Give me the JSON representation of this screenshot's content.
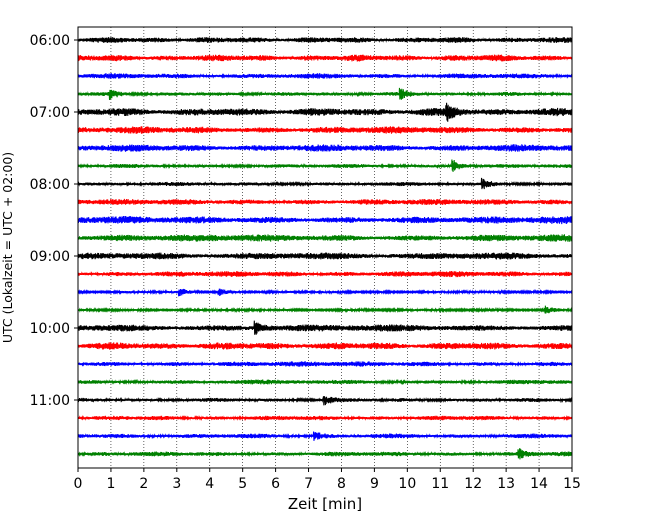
{
  "chart_data": {
    "type": "line",
    "title": "",
    "xlabel": "Zeit  [min]",
    "ylabel": "UTC (Lokalzeit = UTC + 02:00)",
    "xlim": [
      0,
      15
    ],
    "x_ticks": [
      "0",
      "1",
      "2",
      "3",
      "4",
      "5",
      "6",
      "7",
      "8",
      "9",
      "10",
      "11",
      "12",
      "13",
      "14",
      "15"
    ],
    "y_tick_labels": [
      "06:00",
      "07:00",
      "08:00",
      "09:00",
      "10:00",
      "11:00"
    ],
    "y_tick_rows": [
      0,
      4,
      8,
      12,
      16,
      20
    ],
    "grid": "vertical dotted",
    "trace_colors": [
      "#000000",
      "#ff0000",
      "#0000ff",
      "#008000"
    ],
    "traces": [
      {
        "start": "06:00",
        "amplitude": 0.45
      },
      {
        "start": "06:15",
        "amplitude": 0.5
      },
      {
        "start": "06:30",
        "amplitude": 0.4
      },
      {
        "start": "06:45",
        "amplitude": 0.3,
        "events": [
          {
            "t": 1.0,
            "amp": 0.6
          },
          {
            "t": 9.8,
            "amp": 0.6
          }
        ]
      },
      {
        "start": "07:00",
        "amplitude": 0.6,
        "events": [
          {
            "t": 11.2,
            "amp": 1.0
          }
        ]
      },
      {
        "start": "07:15",
        "amplitude": 0.55
      },
      {
        "start": "07:30",
        "amplitude": 0.55
      },
      {
        "start": "07:45",
        "amplitude": 0.3,
        "events": [
          {
            "t": 11.4,
            "amp": 0.8
          }
        ]
      },
      {
        "start": "08:00",
        "amplitude": 0.3,
        "events": [
          {
            "t": 12.3,
            "amp": 0.7
          }
        ]
      },
      {
        "start": "08:15",
        "amplitude": 0.45
      },
      {
        "start": "08:30",
        "amplitude": 0.6
      },
      {
        "start": "08:45",
        "amplitude": 0.55
      },
      {
        "start": "09:00",
        "amplitude": 0.55
      },
      {
        "start": "09:15",
        "amplitude": 0.45
      },
      {
        "start": "09:30",
        "amplitude": 0.2,
        "events": [
          {
            "t": 3.1,
            "amp": 0.5
          },
          {
            "t": 4.3,
            "amp": 0.5
          }
        ]
      },
      {
        "start": "09:45",
        "amplitude": 0.2,
        "events": [
          {
            "t": 14.2,
            "amp": 0.5
          }
        ]
      },
      {
        "start": "10:00",
        "amplitude": 0.55,
        "events": [
          {
            "t": 5.4,
            "amp": 0.8
          }
        ]
      },
      {
        "start": "10:15",
        "amplitude": 0.55
      },
      {
        "start": "10:30",
        "amplitude": 0.4
      },
      {
        "start": "10:45",
        "amplitude": 0.35
      },
      {
        "start": "11:00",
        "amplitude": 0.3,
        "events": [
          {
            "t": 7.5,
            "amp": 0.6
          }
        ]
      },
      {
        "start": "11:15",
        "amplitude": 0.35
      },
      {
        "start": "11:30",
        "amplitude": 0.35,
        "events": [
          {
            "t": 7.2,
            "amp": 0.5
          }
        ]
      },
      {
        "start": "11:45",
        "amplitude": 0.35,
        "events": [
          {
            "t": 13.4,
            "amp": 0.6
          }
        ]
      }
    ]
  }
}
